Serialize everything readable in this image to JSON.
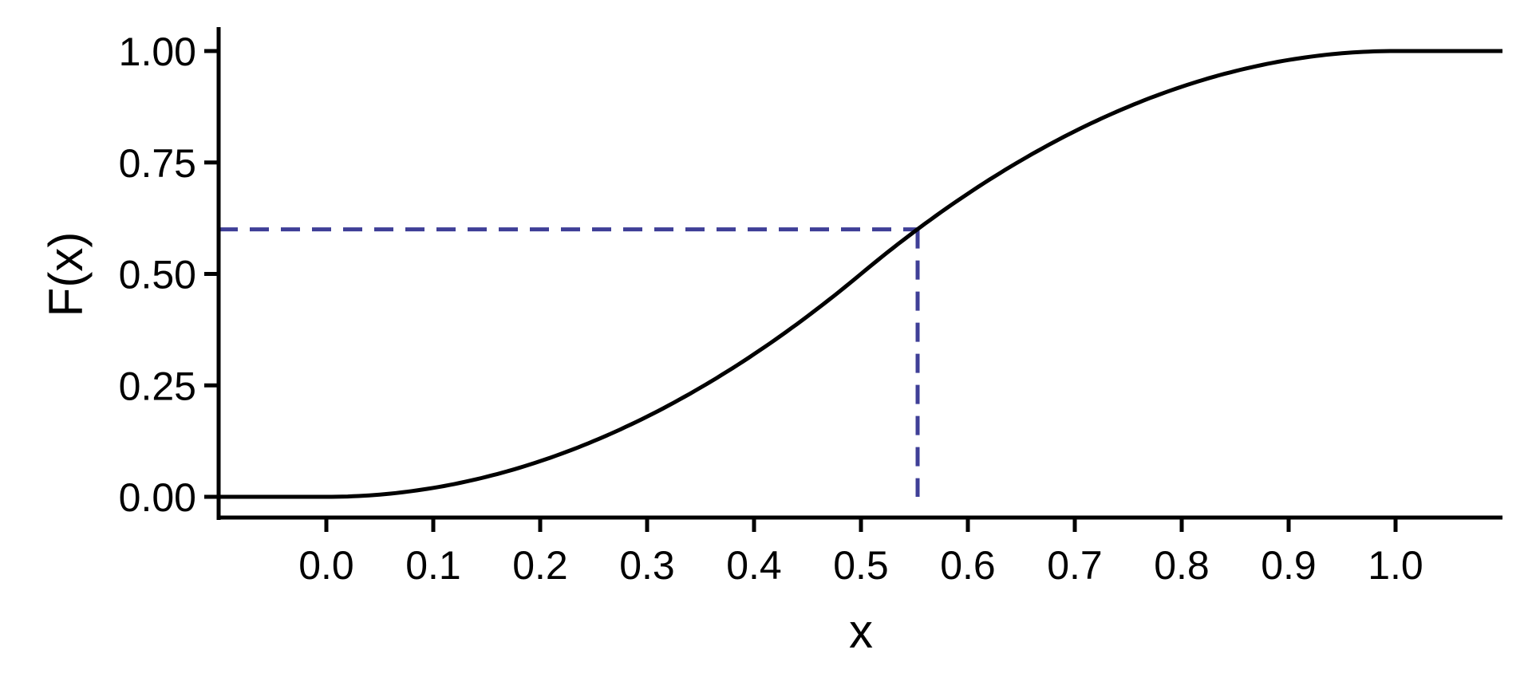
{
  "chart_data": {
    "type": "line",
    "title": "",
    "xlabel": "x",
    "ylabel": "F(x)",
    "xlim": [
      -0.1,
      1.1
    ],
    "ylim": [
      -0.045,
      1.05
    ],
    "x_ticks": [
      "0.0",
      "0.1",
      "0.2",
      "0.3",
      "0.4",
      "0.5",
      "0.6",
      "0.7",
      "0.8",
      "0.9",
      "1.0"
    ],
    "y_ticks": [
      "0.00",
      "0.25",
      "0.50",
      "0.75",
      "1.00"
    ],
    "grid": false,
    "series": [
      {
        "function": "F(x) = 0 for x<0; 2x^2 for 0<=x<0.5; 1-2(1-x)^2 for 0.5<=x<=1; 1 for x>1",
        "x": [
          -0.1,
          0.0,
          0.1,
          0.2,
          0.3,
          0.4,
          0.5,
          0.6,
          0.7,
          0.8,
          0.9,
          1.0,
          1.1
        ],
        "y": [
          0,
          0,
          0.02,
          0.08,
          0.18,
          0.32,
          0.5,
          0.68,
          0.82,
          0.92,
          0.98,
          1,
          1
        ],
        "color": "#000000",
        "style": "solid"
      }
    ],
    "annotations": [
      {
        "type": "dashed-quantile-guide",
        "x": 0.553,
        "y": 0.6,
        "color": "#3f3f97"
      }
    ]
  }
}
